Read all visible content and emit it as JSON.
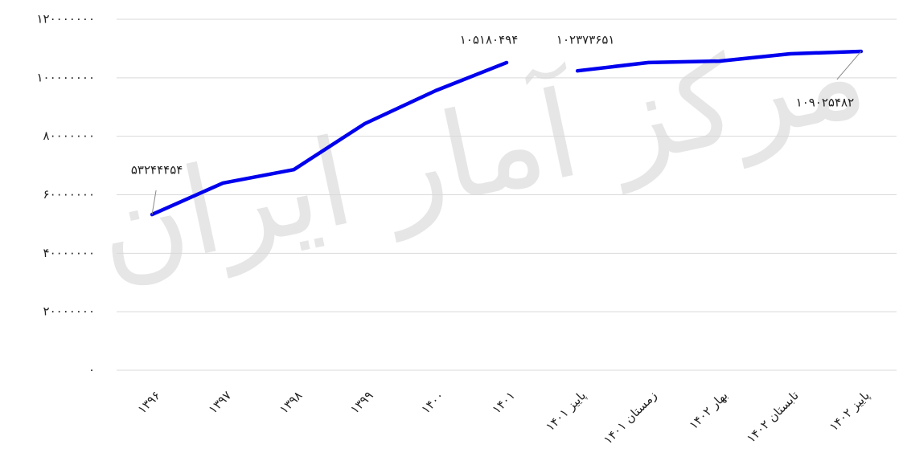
{
  "watermark": "مرکز آمار ایران",
  "chart_data": {
    "type": "line",
    "categories": [
      "۱۳۹۶",
      "۱۳۹۷",
      "۱۳۹۸",
      "۱۳۹۹",
      "۱۴۰۰",
      "۱۴۰۱",
      "پاییز ۱۴۰۱",
      "زمستان ۱۴۰۱",
      "بهار ۱۴۰۲",
      "تابستان ۱۴۰۲",
      "پاییز ۱۴۰۲"
    ],
    "series": [
      {
        "color": "#0000ee",
        "values": [
          53244454,
          64000000,
          68600000,
          84300000,
          95600000,
          105180494,
          null,
          null,
          null,
          null,
          null
        ],
        "value_labels": [
          "۵۳۲۴۴۴۵۴",
          null,
          null,
          null,
          null,
          "۱۰۵۱۸۰۴۹۴",
          null,
          null,
          null,
          null,
          null
        ]
      },
      {
        "color": "#0000ee",
        "values": [
          null,
          null,
          null,
          null,
          null,
          null,
          102373651,
          105200000,
          105700000,
          108200000,
          109025482
        ],
        "value_labels": [
          null,
          null,
          null,
          null,
          null,
          null,
          "۱۰۲۳۷۳۶۵۱",
          null,
          null,
          null,
          "۱۰۹۰۲۵۴۸۲"
        ]
      }
    ],
    "ylim": [
      0,
      120000000
    ],
    "yticks": [
      {
        "value": 0,
        "label": "۰"
      },
      {
        "value": 20000000,
        "label": "۲۰۰۰۰۰۰۰"
      },
      {
        "value": 40000000,
        "label": "۴۰۰۰۰۰۰۰"
      },
      {
        "value": 60000000,
        "label": "۶۰۰۰۰۰۰۰"
      },
      {
        "value": 80000000,
        "label": "۸۰۰۰۰۰۰۰"
      },
      {
        "value": 100000000,
        "label": "۱۰۰۰۰۰۰۰۰"
      },
      {
        "value": 120000000,
        "label": "۱۲۰۰۰۰۰۰۰"
      }
    ],
    "grid": true
  }
}
